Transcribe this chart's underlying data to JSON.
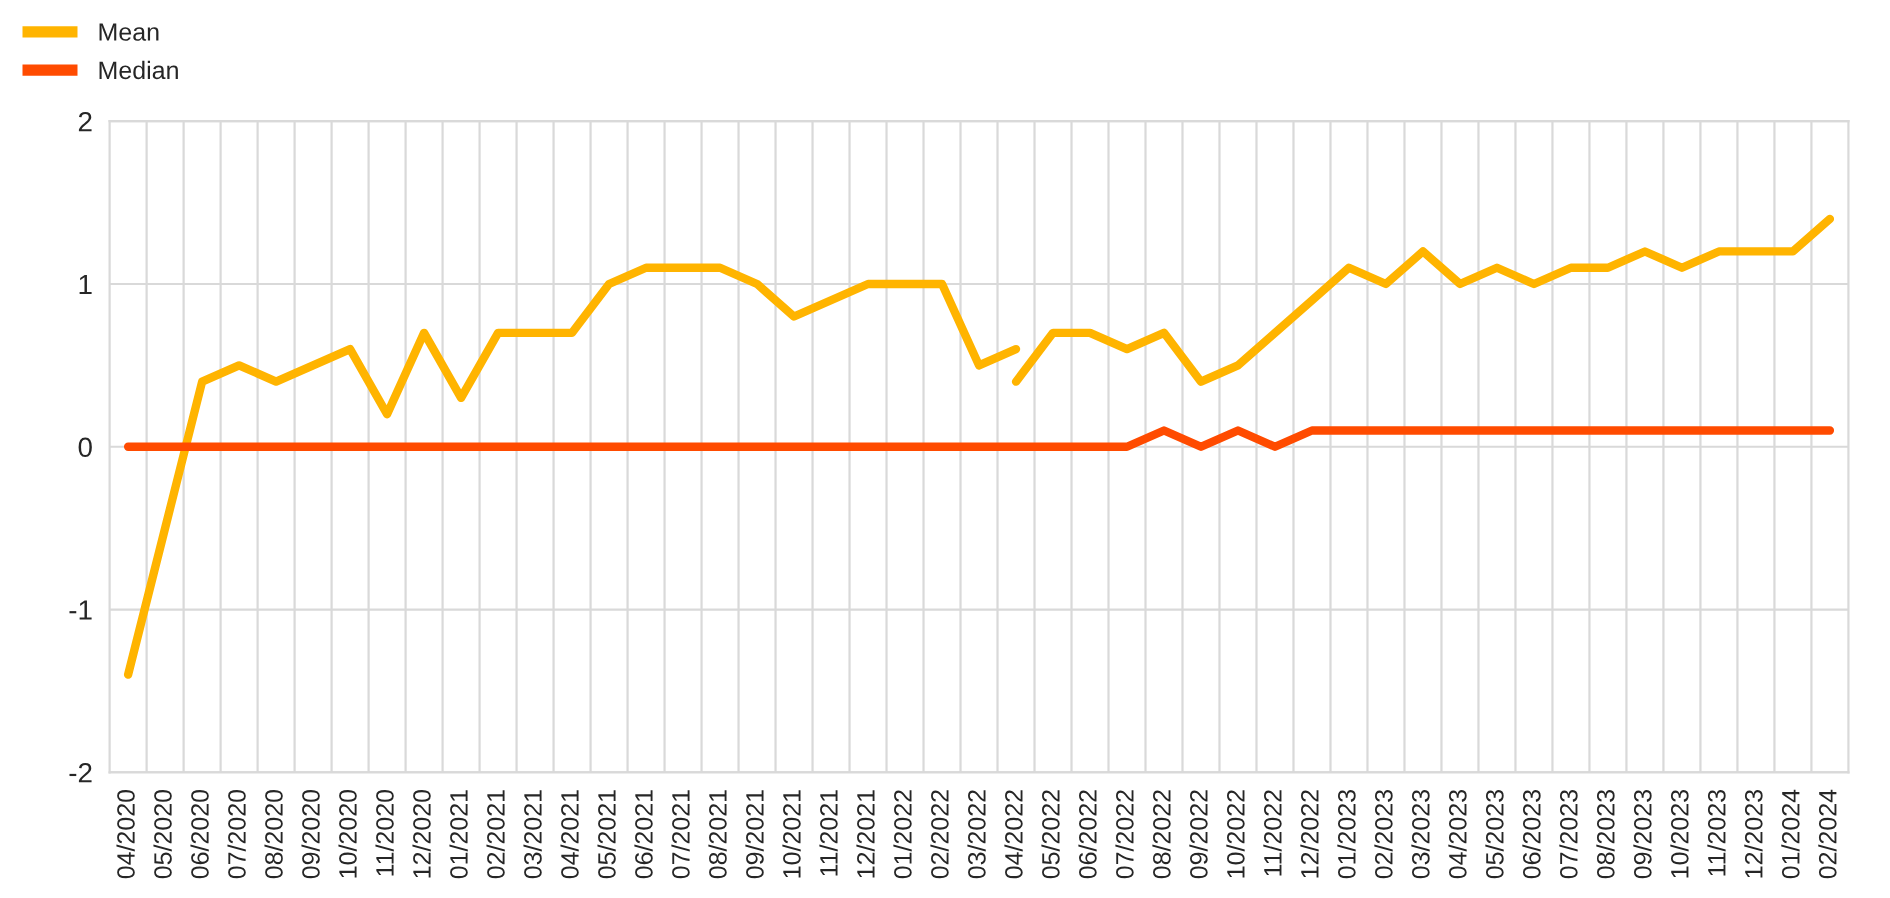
{
  "chart_data": {
    "type": "line",
    "categories": [
      "04/2020",
      "05/2020",
      "06/2020",
      "07/2020",
      "08/2020",
      "09/2020",
      "10/2020",
      "11/2020",
      "12/2020",
      "01/2021",
      "02/2021",
      "03/2021",
      "04/2021",
      "05/2021",
      "06/2021",
      "07/2021",
      "08/2021",
      "09/2021",
      "10/2021",
      "11/2021",
      "12/2021",
      "01/2022",
      "02/2022",
      "03/2022",
      "04/2022",
      "05/2022",
      "06/2022",
      "07/2022",
      "08/2022",
      "09/2022",
      "10/2022",
      "11/2022",
      "12/2022",
      "01/2023",
      "02/2023",
      "03/2023",
      "04/2023",
      "05/2023",
      "06/2023",
      "07/2023",
      "08/2023",
      "09/2023",
      "10/2023",
      "11/2023",
      "12/2023",
      "01/2024",
      "02/2024"
    ],
    "series": [
      {
        "name": "Mean",
        "color": "#ffb400",
        "values": [
          -1.4,
          -0.5,
          0.4,
          0.5,
          0.4,
          0.5,
          0.6,
          0.2,
          0.7,
          0.3,
          0.7,
          0.7,
          0.7,
          1.0,
          1.1,
          1.1,
          1.1,
          1.0,
          0.8,
          0.9,
          1.0,
          1.0,
          1.0,
          0.5,
          0.6,
          null,
          null,
          null,
          null,
          null,
          null,
          null,
          null,
          null,
          null,
          null,
          null,
          null,
          null,
          null,
          null,
          null,
          null,
          null,
          null,
          null,
          null
        ]
      },
      {
        "name": "Median",
        "color": "#ff4b00",
        "values": [
          0,
          0,
          0,
          0,
          0,
          0,
          0,
          0,
          0,
          0,
          0,
          0,
          0,
          0,
          0,
          0,
          0,
          0,
          0,
          0,
          0,
          0,
          0,
          0,
          0,
          0,
          0,
          0,
          0.1,
          0,
          0.1,
          0,
          0.1,
          0.1,
          0.1,
          0.1,
          0.1,
          0.1,
          0.1,
          0.1,
          0.1,
          0.1,
          0.1,
          0.1,
          0.1,
          0.1,
          0.1
        ]
      },
      {
        "color": "#ffb400",
        "values": [
          null,
          null,
          null,
          null,
          null,
          null,
          null,
          null,
          null,
          null,
          null,
          null,
          null,
          null,
          null,
          null,
          null,
          null,
          null,
          null,
          null,
          null,
          null,
          null,
          0.4,
          0.7,
          0.7,
          0.6,
          0.7,
          0.4,
          0.5,
          0.7,
          0.9,
          1.1,
          1.0,
          1.2,
          1.0,
          1.1,
          1.0,
          1.1,
          1.1,
          1.2,
          1.1,
          1.2,
          1.2,
          1.2,
          1.4
        ]
      }
    ],
    "ylim": [
      -2,
      2
    ],
    "yticks": [
      -2,
      -1,
      0,
      1,
      2
    ],
    "grid": true,
    "legend": "top left",
    "marker": "none",
    "line_style": "solid"
  }
}
